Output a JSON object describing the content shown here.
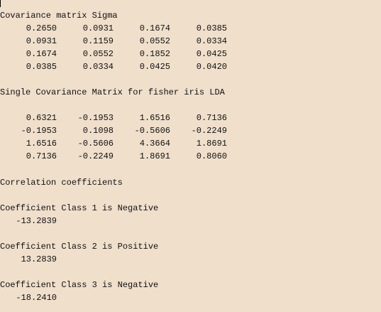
{
  "console": {
    "sigma_heading": "Covariance matrix Sigma",
    "sigma_rows": [
      [
        "0.2650",
        "0.0931",
        "0.1674",
        "0.0385"
      ],
      [
        "0.0931",
        "0.1159",
        "0.0552",
        "0.0334"
      ],
      [
        "0.1674",
        "0.0552",
        "0.1852",
        "0.0425"
      ],
      [
        "0.0385",
        "0.0334",
        "0.0425",
        "0.0420"
      ]
    ],
    "lda_heading": "Single Covariance Matrix for fisher iris LDA",
    "lda_rows": [
      [
        "0.6321",
        "-0.1953",
        "1.6516",
        "0.7136"
      ],
      [
        "-0.1953",
        "0.1098",
        "-0.5606",
        "-0.2249"
      ],
      [
        "1.6516",
        "-0.5606",
        "4.3664",
        "1.8691"
      ],
      [
        "0.7136",
        "-0.2249",
        "1.8691",
        "0.8060"
      ]
    ],
    "correlation_heading": "Correlation coefficients",
    "coefficients": [
      {
        "label": "Coefficient Class 1 is Negative",
        "value": "-13.2839"
      },
      {
        "label": "Coefficient Class 2 is Positive",
        "value": "13.2839"
      },
      {
        "label": "Coefficient Class 3 is Negative",
        "value": "-18.2410"
      }
    ]
  }
}
